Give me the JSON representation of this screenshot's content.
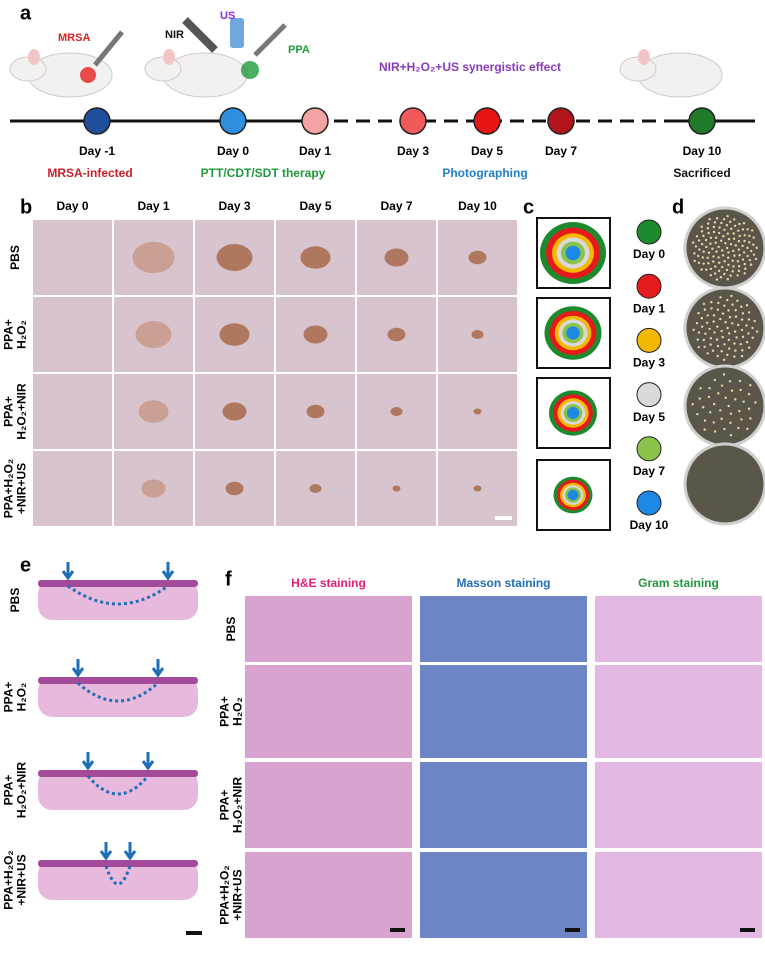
{
  "panel_a": {
    "letter": "a",
    "labels": {
      "mrsa": "MRSA",
      "nir": "NIR",
      "us": "US",
      "ppa": "PPA",
      "effect": "NIR+H₂O₂+US synergistic effect"
    },
    "timeline": [
      {
        "day": "Day -1",
        "color": "#1f4e9c"
      },
      {
        "day": "Day 0",
        "color": "#2e8ee0"
      },
      {
        "day": "Day 1",
        "color": "#f4a3a3"
      },
      {
        "day": "Day 3",
        "color": "#f05a5a"
      },
      {
        "day": "Day 5",
        "color": "#e81515"
      },
      {
        "day": "Day 7",
        "color": "#b3141b"
      },
      {
        "day": "Day 10",
        "color": "#1f7a2a"
      }
    ],
    "captions": [
      {
        "text": "MRSA-infected",
        "color": "#c8202a"
      },
      {
        "text": "PTT/CDT/SDT therapy",
        "color": "#1e9a3a"
      },
      {
        "text": "Photographing",
        "color": "#1f7fc1"
      },
      {
        "text": "Sacrificed",
        "color": "#111111"
      }
    ]
  },
  "groups": [
    [
      "PBS"
    ],
    [
      "PPA+",
      "H₂O₂"
    ],
    [
      "PPA+",
      "H₂O₂+NIR"
    ],
    [
      "PPA+H₂O₂",
      "+NIR+US"
    ]
  ],
  "panel_b": {
    "letter": "b",
    "days": [
      "Day 0",
      "Day 1",
      "Day 3",
      "Day 5",
      "Day 7",
      "Day 10"
    ]
  },
  "panel_c": {
    "letter": "c",
    "legend": [
      {
        "label": "Day 0",
        "color": "#1e8a2e"
      },
      {
        "label": "Day 1",
        "color": "#e41a1c"
      },
      {
        "label": "Day 3",
        "color": "#f5b800"
      },
      {
        "label": "Day 5",
        "color": "#d9d9d9"
      },
      {
        "label": "Day 7",
        "color": "#8bc34a"
      },
      {
        "label": "Day 10",
        "color": "#1e88e5"
      }
    ]
  },
  "panel_d": {
    "letter": "d"
  },
  "panel_e": {
    "letter": "e"
  },
  "panel_f": {
    "letter": "f",
    "stains": [
      {
        "label": "H&E staining",
        "color": "#e0207a"
      },
      {
        "label": "Masson staining",
        "color": "#1f6fb5"
      },
      {
        "label": "Gram staining",
        "color": "#1e9a3a"
      }
    ]
  }
}
